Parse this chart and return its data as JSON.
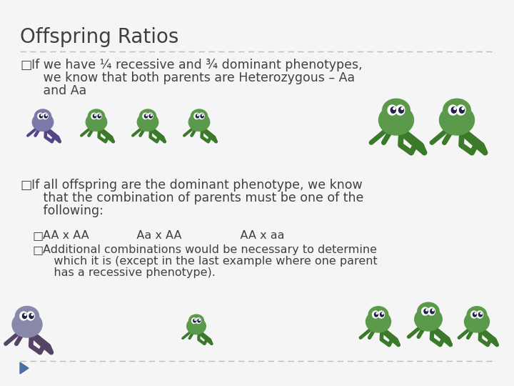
{
  "title": "Offspring Ratios",
  "background_color": "#f5f5f5",
  "title_color": "#404040",
  "title_fontsize": 20,
  "text_color": "#404040",
  "bullet_fontsize": 12.5,
  "sub_bullet_fontsize": 11.5,
  "bullet1_line1": "If we have ¼ recessive and ¾ dominant phenotypes,",
  "bullet1_line2": "   we know that both parents are Heterozygous – Aa",
  "bullet1_line3": "   and Aa",
  "bullet2_line1": "If all offspring are the dominant phenotype, we know",
  "bullet2_line2": "   that the combination of parents must be one of the",
  "bullet2_line3": "   following:",
  "sub_bullet1": "AA x AA             Aa x AA                AA x aa",
  "sub_bullet2_line1": "Additional combinations would be necessary to determine",
  "sub_bullet2_line2": "   which it is (except in the last example where one parent",
  "sub_bullet2_line3": "   has a recessive phenotype).",
  "dashed_line_color": "#bbbbbb",
  "triangle_color": "#4a6fa5",
  "octopus_purple": "#7a7aaa",
  "octopus_green": "#5a9a4a",
  "octopus_dark_green": "#3a7a2a"
}
